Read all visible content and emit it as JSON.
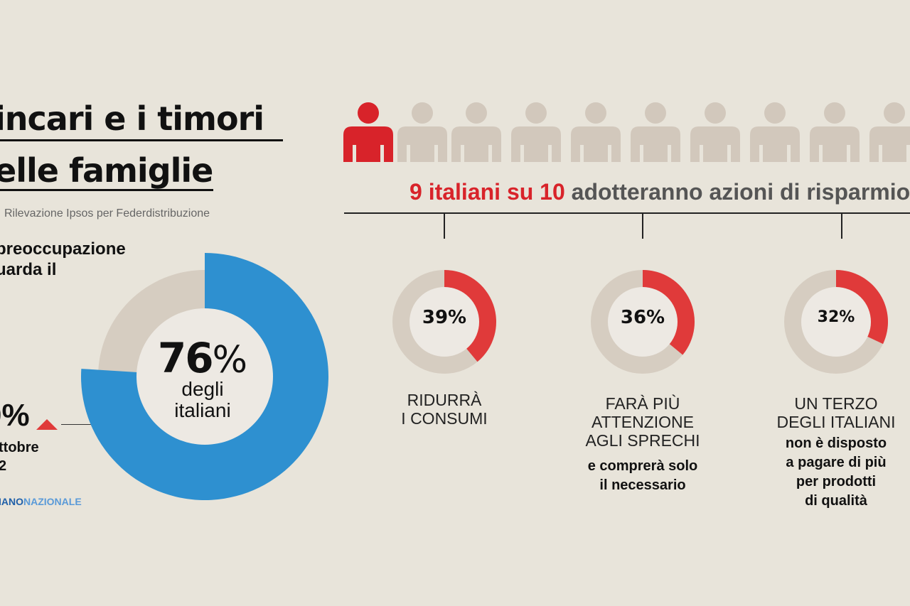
{
  "title": {
    "line1": "incari e i timori",
    "line2": "elle famiglie"
  },
  "source": "Rilevazione Ipsos per Federdistribuzione",
  "concern": {
    "line1": "preoccupazione",
    "line2": "uarda il"
  },
  "previous": {
    "value": "0%",
    "date_line1": "ttobre",
    "date_line2": "2"
  },
  "brand": {
    "part1": "IANO",
    "part2": "NAZIONALE"
  },
  "main_donut": {
    "number": "76",
    "symbol": "%",
    "line1": "degli",
    "line2": "italiani"
  },
  "headline": {
    "red": "9 italiani su 10",
    "grey": "adotteranno azioni di risparmio"
  },
  "people": {
    "highlighted": 1,
    "visible": 10,
    "icon": "person-icon"
  },
  "actions": [
    {
      "label": "39%",
      "line1": "RIDURRÀ",
      "line2": "I CONSUMI",
      "line3": "",
      "extra1": "",
      "extra2": "",
      "extra3": "",
      "extra4": ""
    },
    {
      "label": "36%",
      "line1": "FARÀ PIÙ",
      "line2": "ATTENZIONE",
      "line3": "AGLI SPRECHI",
      "extra1": "e comprerà solo",
      "extra2": "il necessario",
      "extra3": "",
      "extra4": ""
    },
    {
      "label": "32%",
      "line1": "UN TERZO",
      "line2": "DEGLI ITALIANI",
      "line3": "",
      "extra1": "non è disposto",
      "extra2": "a pagare di più",
      "extra3": "per prodotti",
      "extra4": "di qualità"
    }
  ],
  "colors": {
    "blue": "#2e90d0",
    "red": "#e03a3a",
    "track": "#d6cdc1",
    "inner": "#ede9e3",
    "person_grey": "#d2c8bc",
    "person_red": "#d8232a"
  },
  "chart_data": [
    {
      "type": "pie",
      "title": "",
      "values": [
        76,
        24
      ],
      "categories": [
        "degli italiani",
        ""
      ],
      "center_label": "76%"
    },
    {
      "type": "pie",
      "title": "",
      "values": [
        39,
        61
      ],
      "categories": [
        "RIDURRÀ I CONSUMI",
        ""
      ],
      "center_label": "39%"
    },
    {
      "type": "pie",
      "title": "",
      "values": [
        36,
        64
      ],
      "categories": [
        "FARÀ PIÙ ATTENZIONE AGLI SPRECHI",
        ""
      ],
      "center_label": "36%"
    },
    {
      "type": "pie",
      "title": "",
      "values": [
        32,
        68
      ],
      "categories": [
        "UN TERZO DEGLI ITALIANI",
        ""
      ],
      "center_label": "32%"
    }
  ]
}
